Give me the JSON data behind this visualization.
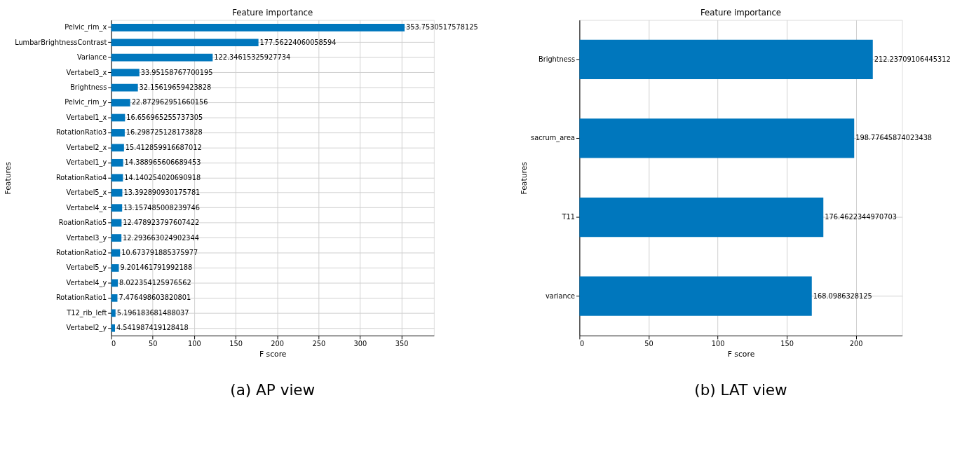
{
  "chart_data": [
    {
      "type": "bar",
      "orientation": "horizontal",
      "title": "Feature importance",
      "xlabel": "F score",
      "ylabel": "Features",
      "categories": [
        "Pelvic_rim_x",
        "LumbarBrightnessContrast",
        "Variance",
        "Vertabel3_x",
        "Brightness",
        "Pelvic_rim_y",
        "Vertabel1_x",
        "RotationRatio3",
        "Vertabel2_x",
        "Vertabel1_y",
        "RotationRatio4",
        "Vertabel5_x",
        "Vertabel4_x",
        "RoationRatio5",
        "Vertabel3_y",
        "RotationRatio2",
        "Vertabel5_y",
        "Vertabel4_y",
        "RotationRatio1",
        "T12_rib_left",
        "Vertabel2_y"
      ],
      "values": [
        353.7530517578125,
        177.56224060058594,
        122.34615325927734,
        33.95158767700195,
        32.15619659423828,
        22.872962951660156,
        16.656965255737305,
        16.298725128173828,
        15.412859916687012,
        14.388965606689453,
        14.140254020690918,
        13.392890930175781,
        13.157485008239746,
        12.478923797607422,
        12.293663024902344,
        10.673791885375977,
        9.201461791992188,
        8.022354125976562,
        7.476498603820801,
        5.196183681488037,
        4.541987419128418
      ],
      "color": "#0077bd",
      "xlim": [
        0,
        389.13
      ],
      "xticks": [
        0,
        50,
        100,
        150,
        200,
        250,
        300,
        350
      ],
      "grid": true,
      "data_labels": true,
      "annotations": [
        "(a) AP view"
      ]
    },
    {
      "type": "bar",
      "orientation": "horizontal",
      "title": "Feature importance",
      "xlabel": "F score",
      "ylabel": "Features",
      "categories": [
        "Brightness",
        "sacrum_area",
        "T11",
        "variance"
      ],
      "values": [
        212.23709106445312,
        198.77645874023438,
        176.4622344970703,
        168.0986328125
      ],
      "color": "#0077bd",
      "xlim": [
        0,
        233.46
      ],
      "xticks": [
        0,
        50,
        100,
        150,
        200
      ],
      "grid": true,
      "data_labels": true,
      "annotations": [
        "(b) LAT view"
      ]
    }
  ]
}
